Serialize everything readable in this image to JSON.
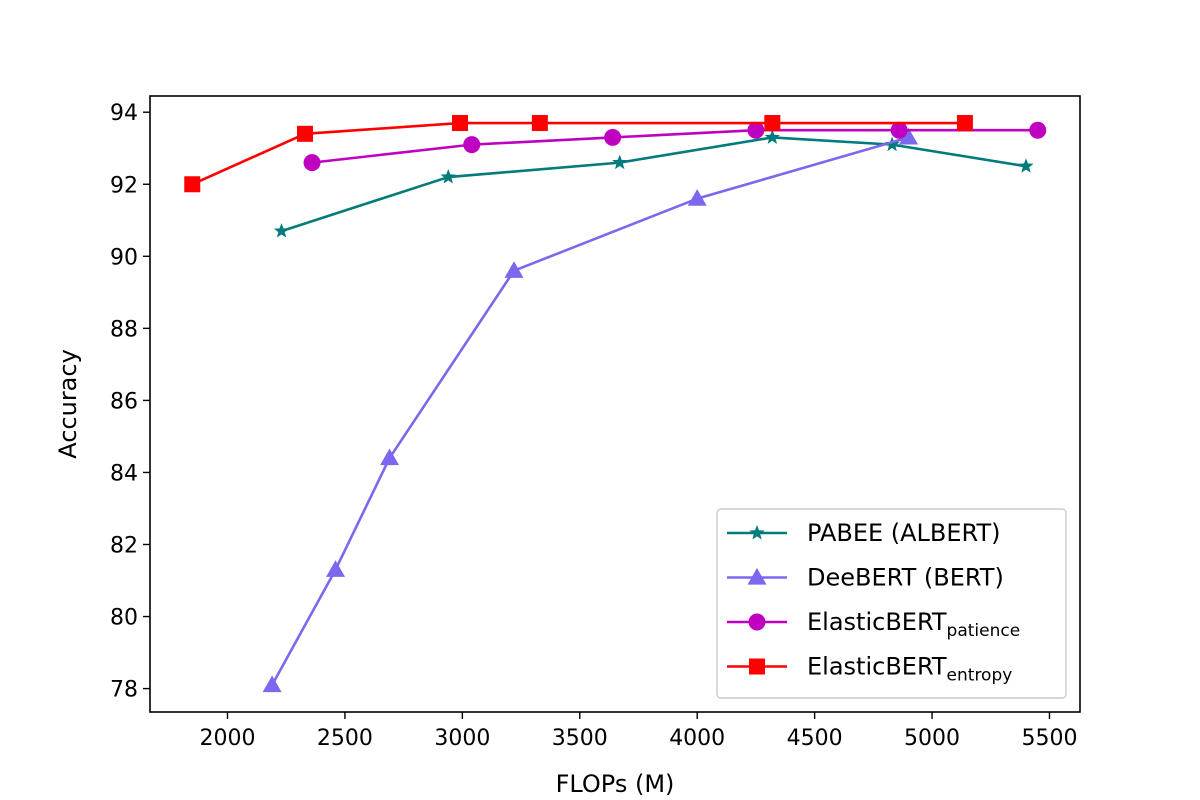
{
  "chart_data": {
    "type": "line",
    "title": "",
    "xlabel": "FLOPs (M)",
    "ylabel": "Accuracy",
    "xlim": [
      1670,
      5630
    ],
    "ylim": [
      77.35,
      94.45
    ],
    "xticks": [
      2000,
      2500,
      3000,
      3500,
      4000,
      4500,
      5000,
      5500
    ],
    "yticks": [
      78,
      80,
      82,
      84,
      86,
      88,
      90,
      92,
      94
    ],
    "grid": false,
    "legend_position": "lower-right",
    "series": [
      {
        "name": "PABEE (ALBERT)",
        "legend_main": "PABEE (ALBERT)",
        "legend_sub": "",
        "color": "#007b7b",
        "marker": "star",
        "x": [
          2230,
          2940,
          3670,
          4320,
          4830,
          5400
        ],
        "y": [
          90.7,
          92.2,
          92.6,
          93.3,
          93.1,
          92.5
        ]
      },
      {
        "name": "DeeBERT (BERT)",
        "legend_main": "DeeBERT (BERT)",
        "legend_sub": "",
        "color": "#7b68ee",
        "marker": "triangle",
        "x": [
          2190,
          2460,
          2690,
          3220,
          4000,
          4900
        ],
        "y": [
          78.1,
          81.3,
          84.4,
          89.6,
          91.6,
          93.3
        ]
      },
      {
        "name": "ElasticBERT patience",
        "legend_main": "ElasticBERT",
        "legend_sub": "patience",
        "color": "#c000c0",
        "marker": "circle",
        "x": [
          2360,
          3040,
          3640,
          4250,
          4860,
          5450
        ],
        "y": [
          92.6,
          93.1,
          93.3,
          93.5,
          93.5,
          93.5
        ]
      },
      {
        "name": "ElasticBERT entropy",
        "legend_main": "ElasticBERT",
        "legend_sub": "entropy",
        "color": "#ff0000",
        "marker": "square",
        "x": [
          1850,
          2330,
          2990,
          3330,
          4320,
          5140
        ],
        "y": [
          92.0,
          93.4,
          93.7,
          93.7,
          93.7,
          93.7
        ]
      }
    ]
  }
}
